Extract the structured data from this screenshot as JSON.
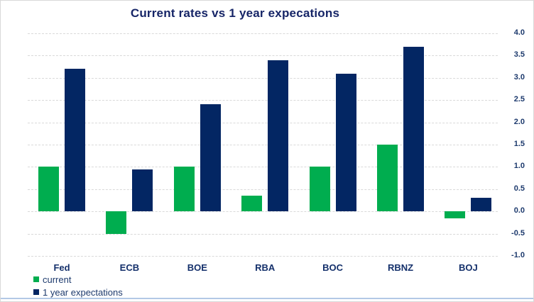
{
  "chart_data": {
    "type": "bar",
    "title": "Current rates vs 1 year expecations",
    "categories": [
      "Fed",
      "ECB",
      "BOE",
      "RBA",
      "BOC",
      "RBNZ",
      "BOJ"
    ],
    "series": [
      {
        "name": "current",
        "color": "#00ad4f",
        "values": [
          1.0,
          -0.5,
          1.0,
          0.35,
          1.0,
          1.5,
          -0.15
        ]
      },
      {
        "name": "1 year expectations",
        "color": "#032663",
        "values": [
          3.2,
          0.95,
          2.4,
          3.4,
          3.1,
          3.7,
          0.3
        ]
      }
    ],
    "ylim": [
      -1.0,
      4.0
    ],
    "ytick_step": 0.5,
    "yticks": [
      "4.0",
      "3.5",
      "3.0",
      "2.5",
      "2.0",
      "1.5",
      "1.0",
      "0.5",
      "0.0",
      "-0.5",
      "-1.0"
    ],
    "axis_side": "right",
    "grid": "horizontal-dashed",
    "legend_position": "bottom-left"
  },
  "colors": {
    "title_text": "#162567",
    "axis_text": "#1d3a6d",
    "category_text": "#14306b",
    "gridline": "#d9d9d9",
    "frame_border": "#d9d9d9",
    "bottom_accent": "#b3c9e6",
    "background": "#ffffff"
  }
}
